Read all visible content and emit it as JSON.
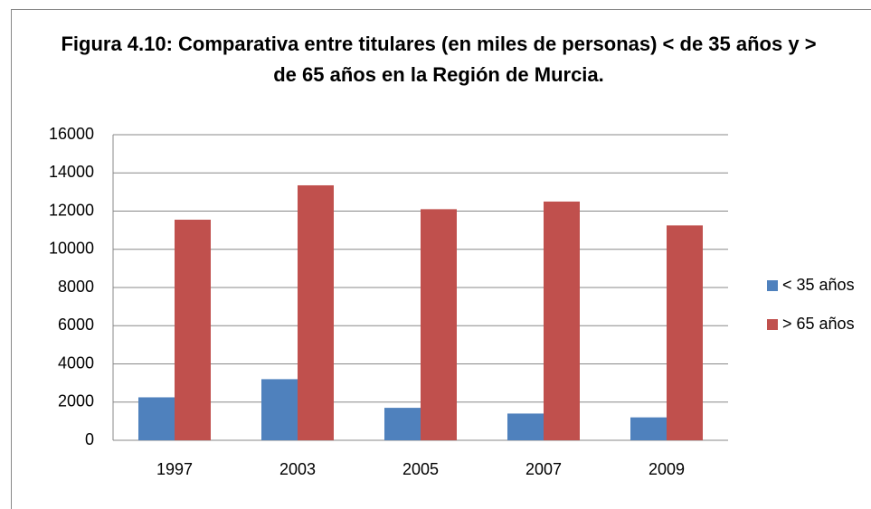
{
  "chart_data": {
    "type": "bar",
    "title": "Figura 4.10: Comparativa entre titulares (en miles de personas) < de 35 años y > de 65 años en la Región de Murcia.",
    "categories": [
      "1997",
      "2003",
      "2005",
      "2007",
      "2009"
    ],
    "series": [
      {
        "name": "< 35 años",
        "color": "#4f81bd",
        "values": [
          2250,
          3200,
          1700,
          1400,
          1200
        ]
      },
      {
        "name": "> 65 años",
        "color": "#c0504d",
        "values": [
          11550,
          13350,
          12100,
          12500,
          11250
        ]
      }
    ],
    "ylim": [
      0,
      16000
    ],
    "yticks": [
      0,
      2000,
      4000,
      6000,
      8000,
      10000,
      12000,
      14000,
      16000
    ],
    "grid": true,
    "legend": "right"
  }
}
